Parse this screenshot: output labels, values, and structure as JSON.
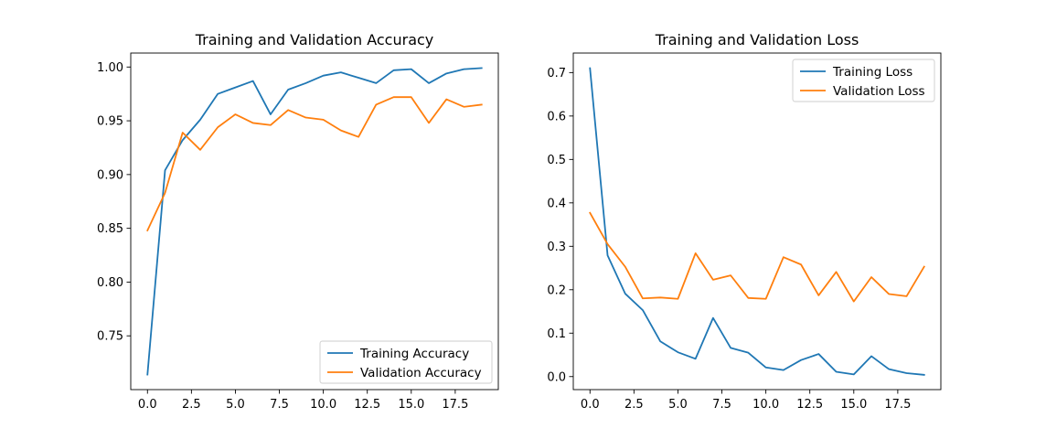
{
  "chart_data": [
    {
      "type": "line",
      "title": "Training and Validation Accuracy",
      "xlabel": "",
      "ylabel": "",
      "xlim": [
        -0.95,
        19.95
      ],
      "ylim": [
        0.7,
        1.013
      ],
      "xticks": [
        0,
        2.5,
        5,
        7.5,
        10,
        12.5,
        15,
        17.5
      ],
      "xtick_labels": [
        "0.0",
        "2.5",
        "5.0",
        "7.5",
        "10.0",
        "12.5",
        "15.0",
        "17.5"
      ],
      "yticks": [
        0.75,
        0.8,
        0.85,
        0.9,
        0.95,
        1.0
      ],
      "ytick_labels": [
        "0.75",
        "0.80",
        "0.85",
        "0.90",
        "0.95",
        "1.00"
      ],
      "grid": false,
      "legend_loc": "lower-right",
      "x": [
        0,
        1,
        2,
        3,
        4,
        5,
        6,
        7,
        8,
        9,
        10,
        11,
        12,
        13,
        14,
        15,
        16,
        17,
        18,
        19
      ],
      "series": [
        {
          "name": "Training Accuracy",
          "color": "#1f77b4",
          "values": [
            0.714,
            0.904,
            0.932,
            0.951,
            0.975,
            0.981,
            0.987,
            0.956,
            0.979,
            0.985,
            0.992,
            0.995,
            0.99,
            0.985,
            0.997,
            0.998,
            0.985,
            0.994,
            0.998,
            0.999
          ]
        },
        {
          "name": "Validation Accuracy",
          "color": "#ff7f0e",
          "values": [
            0.848,
            0.883,
            0.939,
            0.923,
            0.944,
            0.956,
            0.948,
            0.946,
            0.96,
            0.953,
            0.951,
            0.941,
            0.935,
            0.965,
            0.972,
            0.972,
            0.948,
            0.97,
            0.963,
            0.965
          ]
        }
      ]
    },
    {
      "type": "line",
      "title": "Training and Validation Loss",
      "xlabel": "",
      "ylabel": "",
      "xlim": [
        -0.95,
        19.95
      ],
      "ylim": [
        -0.03,
        0.745
      ],
      "xticks": [
        0,
        2.5,
        5,
        7.5,
        10,
        12.5,
        15,
        17.5
      ],
      "xtick_labels": [
        "0.0",
        "2.5",
        "5.0",
        "7.5",
        "10.0",
        "12.5",
        "15.0",
        "17.5"
      ],
      "yticks": [
        0,
        0.1,
        0.2,
        0.3,
        0.4,
        0.5,
        0.6,
        0.7
      ],
      "ytick_labels": [
        "0.0",
        "0.1",
        "0.2",
        "0.3",
        "0.4",
        "0.5",
        "0.6",
        "0.7"
      ],
      "grid": false,
      "legend_loc": "upper-right",
      "x": [
        0,
        1,
        2,
        3,
        4,
        5,
        6,
        7,
        8,
        9,
        10,
        11,
        12,
        13,
        14,
        15,
        16,
        17,
        18,
        19
      ],
      "series": [
        {
          "name": "Training Loss",
          "color": "#1f77b4",
          "values": [
            0.71,
            0.279,
            0.191,
            0.153,
            0.081,
            0.056,
            0.041,
            0.135,
            0.066,
            0.055,
            0.021,
            0.015,
            0.038,
            0.052,
            0.011,
            0.005,
            0.047,
            0.017,
            0.008,
            0.004
          ]
        },
        {
          "name": "Validation Loss",
          "color": "#ff7f0e",
          "values": [
            0.377,
            0.305,
            0.253,
            0.18,
            0.182,
            0.179,
            0.284,
            0.223,
            0.233,
            0.181,
            0.179,
            0.275,
            0.258,
            0.187,
            0.241,
            0.173,
            0.229,
            0.19,
            0.185,
            0.253
          ]
        }
      ]
    }
  ]
}
